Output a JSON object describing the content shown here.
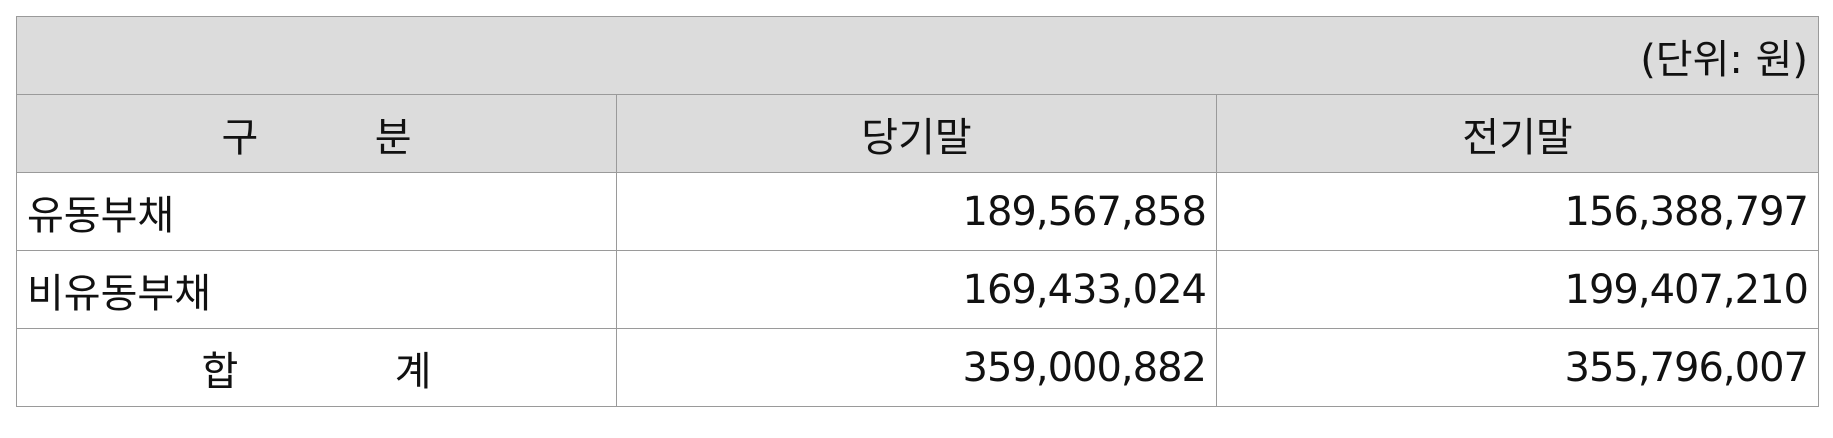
{
  "unit_note": "(단위: 원)",
  "header": {
    "col1_chars": [
      "구",
      "분"
    ],
    "col2": "당기말",
    "col3": "전기말"
  },
  "rows": [
    {
      "label": "유동부채",
      "current": "189,567,858",
      "prior": "156,388,797"
    },
    {
      "label": "비유동부채",
      "current": "169,433,024",
      "prior": "199,407,210"
    }
  ],
  "total": {
    "label_chars": [
      "합",
      "계"
    ],
    "current": "359,000,882",
    "prior": "355,796,007"
  }
}
